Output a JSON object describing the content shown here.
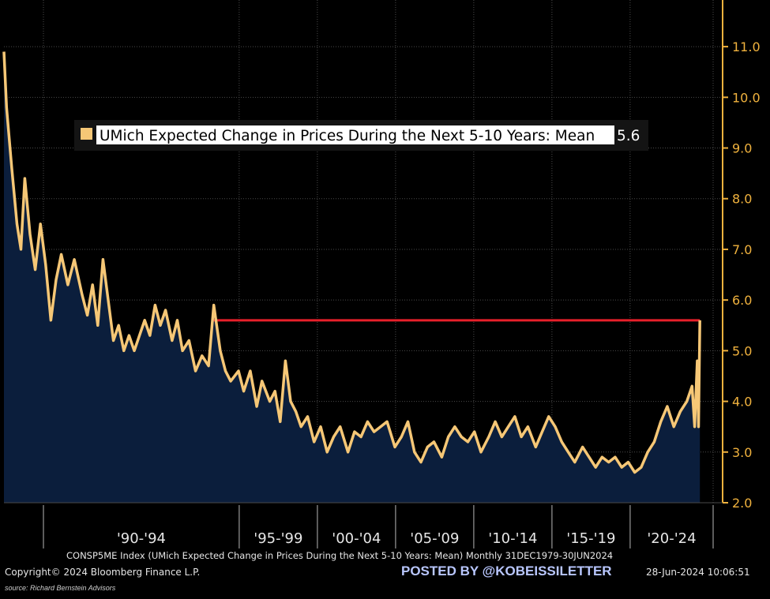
{
  "chart_data": {
    "type": "area",
    "title": "",
    "xlabel": "",
    "ylabel": "",
    "ylim": [
      2.0,
      11.5
    ],
    "yticks": [
      "2.0",
      "3.0",
      "4.0",
      "5.0",
      "6.0",
      "7.0",
      "8.0",
      "9.0",
      "10.0",
      "11.0"
    ],
    "xticks": [
      "'90-'94",
      "'95-'99",
      "'00-'04",
      "'05-'09",
      "'10-'14",
      "'15-'19",
      "'20-'24"
    ],
    "grid": true,
    "legend_position": "top-left",
    "series": [
      {
        "name": "UMich Expected Change in Prices During the Next 5-10 Years: Mean",
        "last_value": "5.6",
        "color": "#f6c776",
        "fill": "#0b1e3c",
        "points": [
          [
            "1979-12",
            10.9
          ],
          [
            "1980-02",
            9.8
          ],
          [
            "1980-06",
            8.6
          ],
          [
            "1980-10",
            7.5
          ],
          [
            "1981-01",
            7.0
          ],
          [
            "1981-04",
            8.4
          ],
          [
            "1981-08",
            7.3
          ],
          [
            "1981-12",
            6.6
          ],
          [
            "1982-04",
            7.5
          ],
          [
            "1982-08",
            6.7
          ],
          [
            "1982-12",
            5.6
          ],
          [
            "1983-04",
            6.4
          ],
          [
            "1983-08",
            6.9
          ],
          [
            "1984-01",
            6.3
          ],
          [
            "1984-06",
            6.8
          ],
          [
            "1984-12",
            6.1
          ],
          [
            "1985-04",
            5.7
          ],
          [
            "1985-08",
            6.3
          ],
          [
            "1985-12",
            5.5
          ],
          [
            "1986-04",
            6.8
          ],
          [
            "1986-08",
            6.0
          ],
          [
            "1986-12",
            5.2
          ],
          [
            "1987-04",
            5.5
          ],
          [
            "1987-08",
            5.0
          ],
          [
            "1987-12",
            5.3
          ],
          [
            "1988-04",
            5.0
          ],
          [
            "1988-08",
            5.3
          ],
          [
            "1988-12",
            5.6
          ],
          [
            "1989-04",
            5.3
          ],
          [
            "1989-08",
            5.9
          ],
          [
            "1989-12",
            5.5
          ],
          [
            "1990-04",
            5.8
          ],
          [
            "1990-09",
            5.2
          ],
          [
            "1991-01",
            5.6
          ],
          [
            "1991-05",
            5.0
          ],
          [
            "1991-10",
            5.2
          ],
          [
            "1992-03",
            4.6
          ],
          [
            "1992-08",
            4.9
          ],
          [
            "1993-01",
            4.7
          ],
          [
            "1993-05",
            5.9
          ],
          [
            "1993-10",
            5.0
          ],
          [
            "1994-02",
            4.6
          ],
          [
            "1994-06",
            4.4
          ],
          [
            "1994-12",
            4.6
          ],
          [
            "1995-04",
            4.2
          ],
          [
            "1995-09",
            4.6
          ],
          [
            "1996-02",
            3.9
          ],
          [
            "1996-06",
            4.4
          ],
          [
            "1996-12",
            4.0
          ],
          [
            "1997-04",
            4.2
          ],
          [
            "1997-08",
            3.6
          ],
          [
            "1997-12",
            4.8
          ],
          [
            "1998-04",
            4.0
          ],
          [
            "1998-08",
            3.8
          ],
          [
            "1998-12",
            3.5
          ],
          [
            "1999-05",
            3.7
          ],
          [
            "1999-10",
            3.2
          ],
          [
            "2000-03",
            3.5
          ],
          [
            "2000-08",
            3.0
          ],
          [
            "2001-01",
            3.3
          ],
          [
            "2001-06",
            3.5
          ],
          [
            "2001-12",
            3.0
          ],
          [
            "2002-05",
            3.4
          ],
          [
            "2002-10",
            3.3
          ],
          [
            "2003-03",
            3.6
          ],
          [
            "2003-08",
            3.4
          ],
          [
            "2004-01",
            3.5
          ],
          [
            "2004-06",
            3.6
          ],
          [
            "2004-12",
            3.1
          ],
          [
            "2005-05",
            3.3
          ],
          [
            "2005-10",
            3.6
          ],
          [
            "2006-03",
            3.0
          ],
          [
            "2006-08",
            2.8
          ],
          [
            "2007-01",
            3.1
          ],
          [
            "2007-06",
            3.2
          ],
          [
            "2007-12",
            2.9
          ],
          [
            "2008-05",
            3.3
          ],
          [
            "2008-10",
            3.5
          ],
          [
            "2009-03",
            3.3
          ],
          [
            "2009-08",
            3.2
          ],
          [
            "2010-01",
            3.4
          ],
          [
            "2010-06",
            3.0
          ],
          [
            "2010-12",
            3.3
          ],
          [
            "2011-05",
            3.6
          ],
          [
            "2011-10",
            3.3
          ],
          [
            "2012-03",
            3.5
          ],
          [
            "2012-08",
            3.7
          ],
          [
            "2013-01",
            3.3
          ],
          [
            "2013-06",
            3.5
          ],
          [
            "2013-12",
            3.1
          ],
          [
            "2014-05",
            3.4
          ],
          [
            "2014-10",
            3.7
          ],
          [
            "2015-03",
            3.5
          ],
          [
            "2015-08",
            3.2
          ],
          [
            "2016-01",
            3.0
          ],
          [
            "2016-06",
            2.8
          ],
          [
            "2016-12",
            3.1
          ],
          [
            "2017-05",
            2.9
          ],
          [
            "2017-10",
            2.7
          ],
          [
            "2018-03",
            2.9
          ],
          [
            "2018-08",
            2.8
          ],
          [
            "2019-01",
            2.9
          ],
          [
            "2019-06",
            2.7
          ],
          [
            "2019-11",
            2.8
          ],
          [
            "2020-04",
            2.6
          ],
          [
            "2020-09",
            2.7
          ],
          [
            "2021-02",
            3.0
          ],
          [
            "2021-07",
            3.2
          ],
          [
            "2021-12",
            3.6
          ],
          [
            "2022-05",
            3.9
          ],
          [
            "2022-10",
            3.5
          ],
          [
            "2023-03",
            3.8
          ],
          [
            "2023-08",
            4.0
          ],
          [
            "2023-12",
            4.3
          ],
          [
            "2024-02",
            3.5
          ],
          [
            "2024-04",
            4.8
          ],
          [
            "2024-05",
            3.5
          ],
          [
            "2024-06",
            5.6
          ]
        ]
      }
    ],
    "reference_line": {
      "y": 5.6,
      "from": "1993-05",
      "to": "2024-06",
      "color": "#e8202a"
    }
  },
  "footer": {
    "description": "CONSP5ME Index (UMich Expected Change in Prices During the Next 5-10 Years: Mean)  Monthly 31DEC1979-30JUN2024",
    "copyright": "Copyright© 2024 Bloomberg Finance L.P.",
    "posted_by": "POSTED BY @KOBEISSILETTER",
    "timestamp": "28-Jun-2024  10:06:51",
    "source": "source: Richard Bernstein Advisors"
  },
  "colors": {
    "background": "#000000",
    "axis": "#f0b23e",
    "grid": "#4a4a4a",
    "line": "#f6c776",
    "fill": "#0b1e3c"
  }
}
